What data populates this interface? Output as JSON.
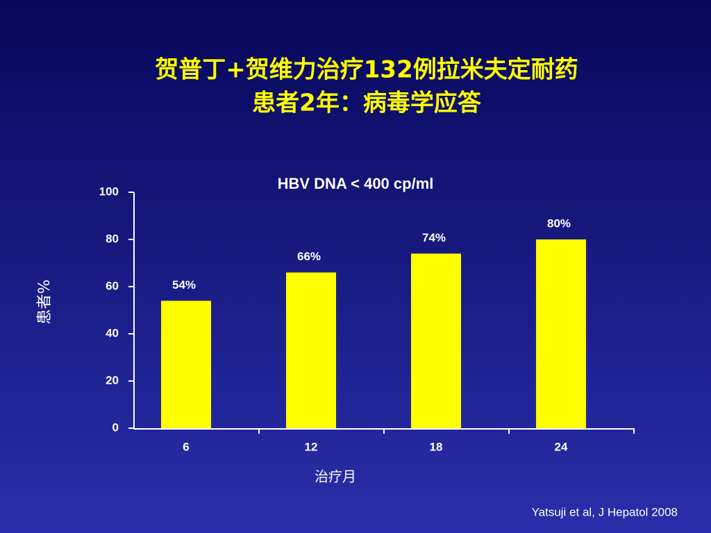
{
  "chart_data": {
    "type": "bar",
    "title": [
      "贺普丁+贺维力治疗132例拉米夫定耐药",
      "患者2年：病毒学应答"
    ],
    "subtitle": "HBV DNA < 400 cp/ml",
    "x_label": "治疗月",
    "y_label": "患者%",
    "categories": [
      "6",
      "12",
      "18",
      "24"
    ],
    "values": [
      54,
      66,
      74,
      80
    ],
    "value_labels": [
      "54%",
      "66%",
      "74%",
      "80%"
    ],
    "color": "#ffff00",
    "ylim": [
      0,
      100
    ],
    "yticks": [
      0,
      20,
      40,
      60,
      80,
      100
    ],
    "source": "Yatsuji et al, J Hepatol 2008"
  }
}
